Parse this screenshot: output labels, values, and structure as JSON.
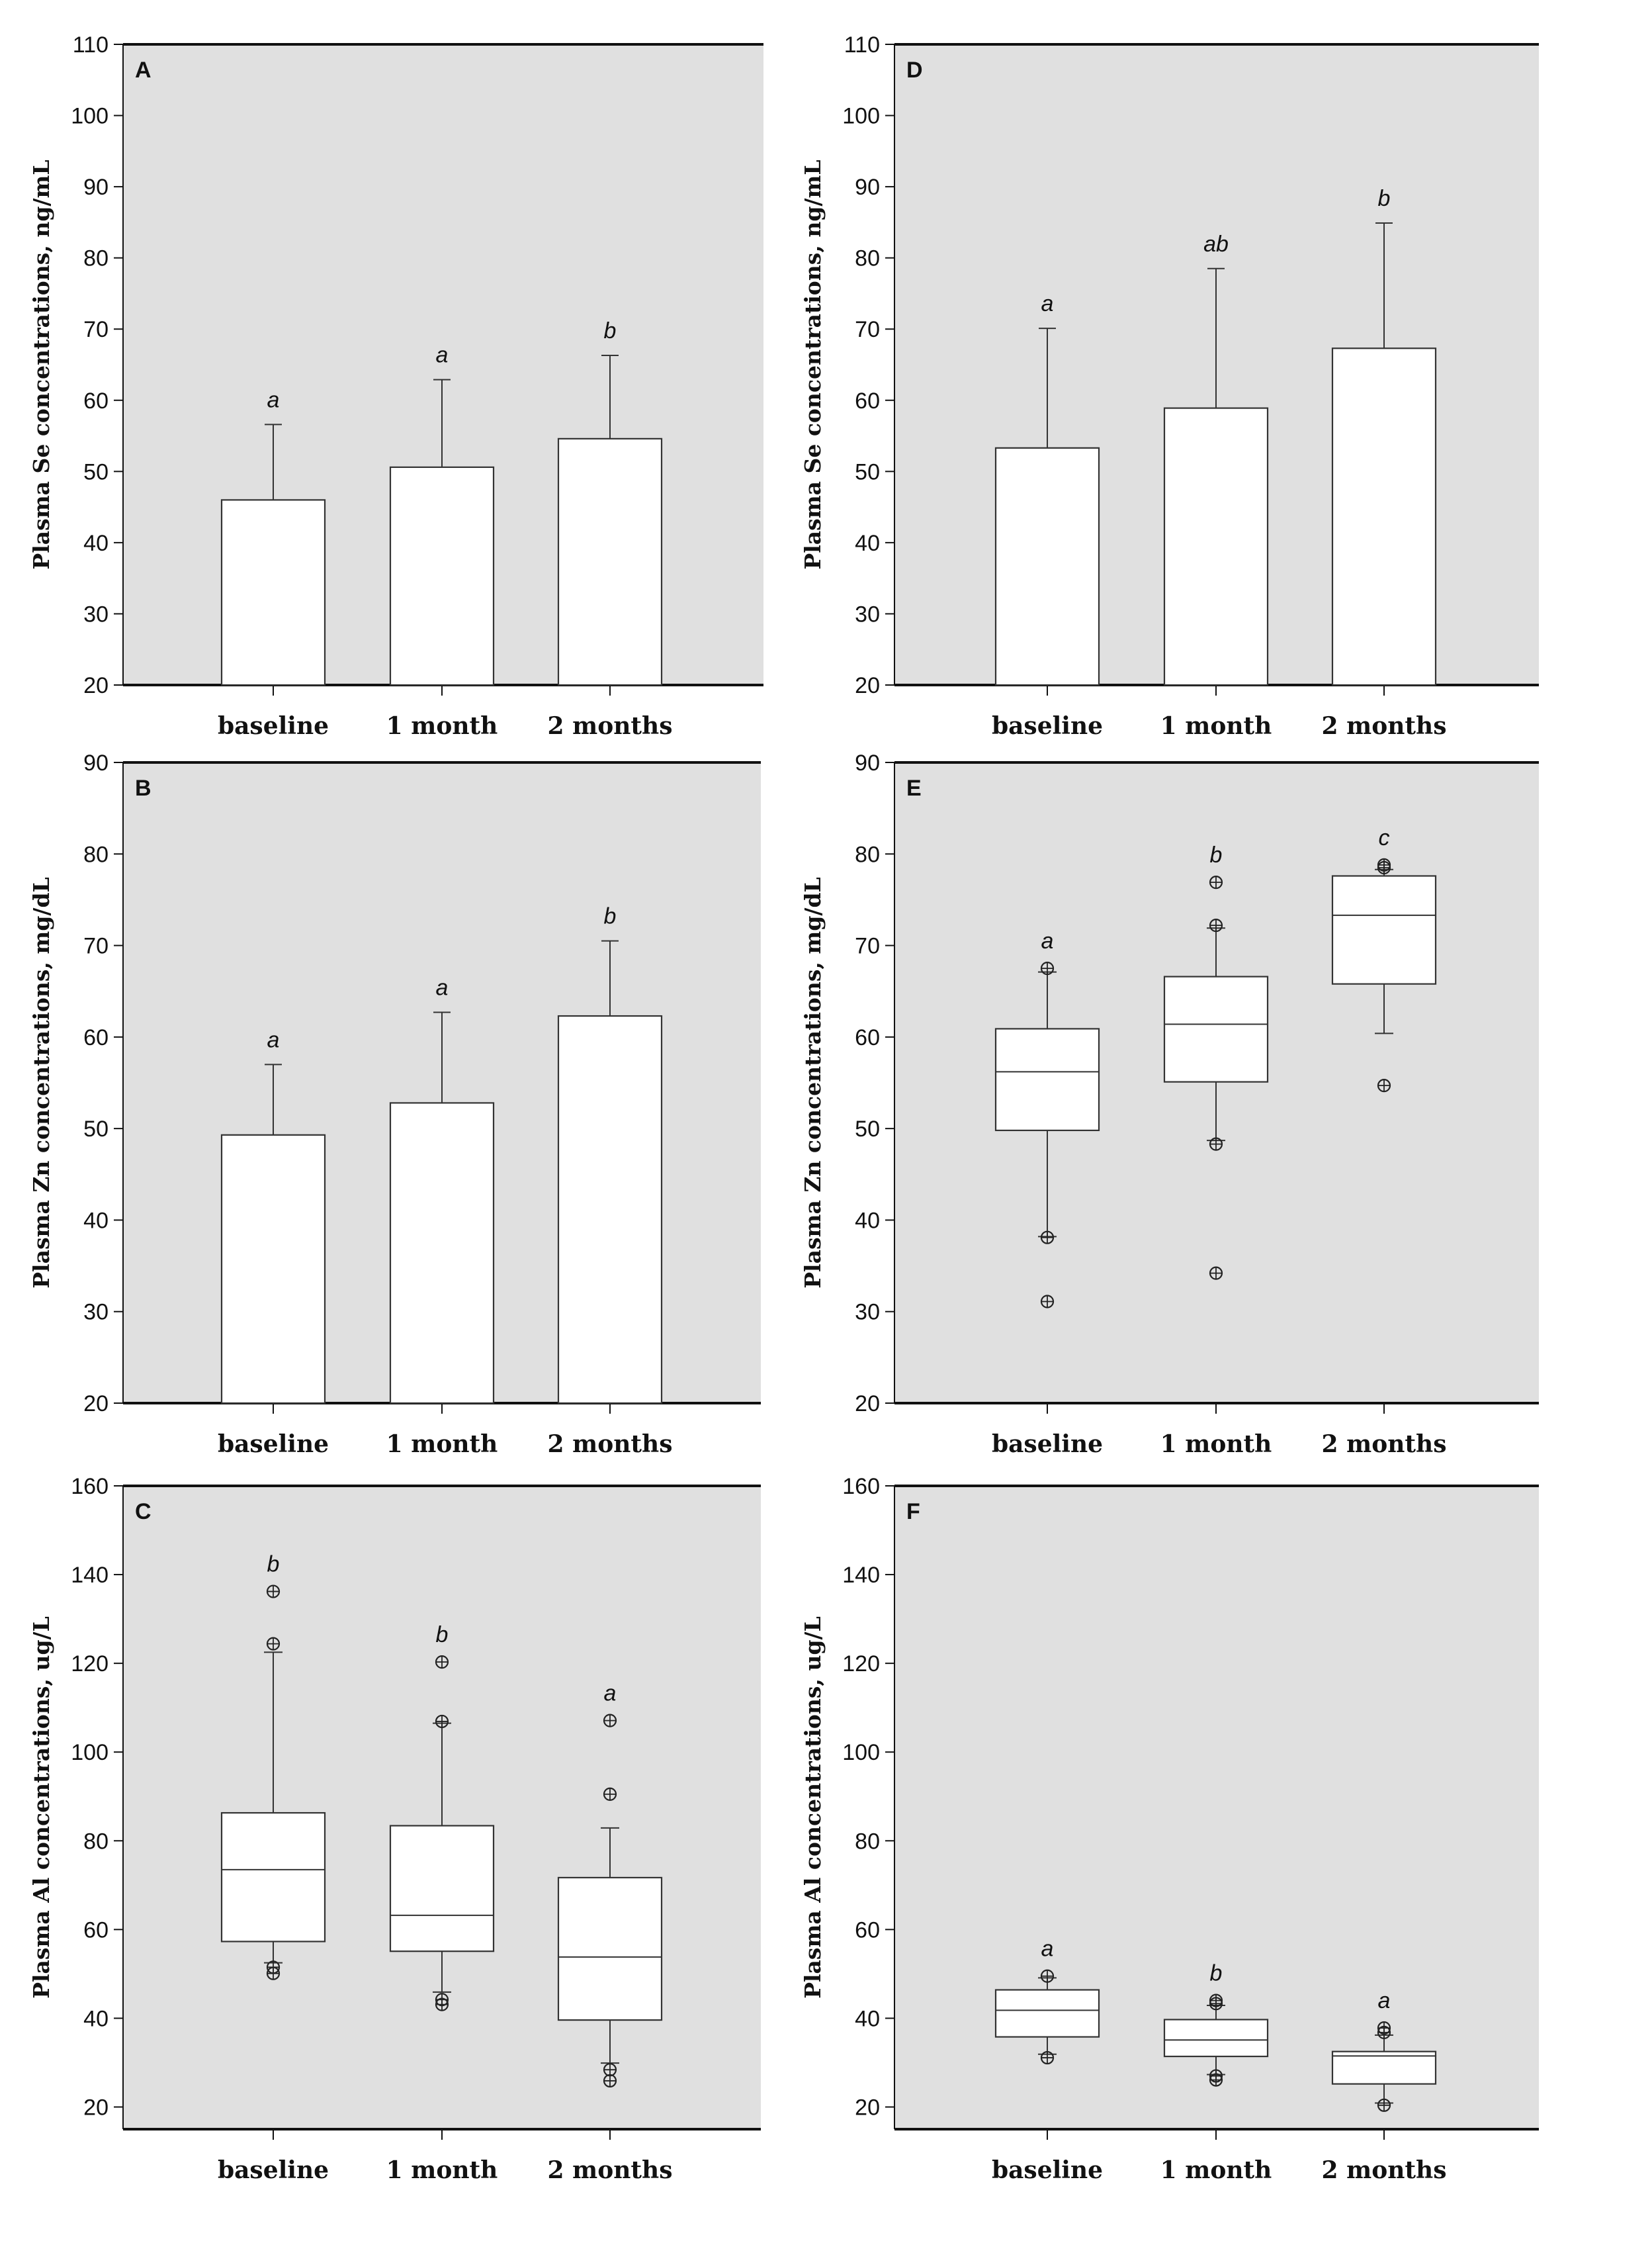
{
  "chart_data": [
    {
      "panel": "A",
      "type": "bar",
      "ylabel": "Plasma Se concentrations, ng/mL",
      "ylim": [
        20,
        110
      ],
      "yticks": [
        20,
        30,
        40,
        50,
        60,
        70,
        80,
        90,
        100,
        110
      ],
      "categories": [
        "baseline",
        "1 month",
        "2 months"
      ],
      "values": [
        46,
        50.6,
        54.6
      ],
      "error_upper": [
        56.6,
        62.9,
        66.3
      ],
      "significance": [
        "a",
        "a",
        "b"
      ]
    },
    {
      "panel": "B",
      "type": "bar",
      "ylabel": "Plasma Zn concentrations, mg/dL",
      "ylim": [
        20,
        90
      ],
      "yticks": [
        20,
        30,
        40,
        50,
        60,
        70,
        80,
        90
      ],
      "categories": [
        "baseline",
        "1 month",
        "2 months"
      ],
      "values": [
        49.3,
        52.8,
        62.3
      ],
      "error_upper": [
        57,
        62.7,
        70.5
      ],
      "significance": [
        "a",
        "a",
        "b"
      ]
    },
    {
      "panel": "C",
      "type": "box",
      "ylabel": "Plasma Al concentrations, ug/L",
      "ylim": [
        15,
        160
      ],
      "yticks": [
        20,
        40,
        60,
        80,
        100,
        120,
        140,
        160
      ],
      "categories": [
        "baseline",
        "1 month",
        "2 months"
      ],
      "boxes": [
        {
          "whisker_low": 52.5,
          "q1": 57.3,
          "median": 73.5,
          "q3": 86.3,
          "whisker_high": 122.5,
          "outliers": [
            50.1,
            51.5,
            124.4,
            136.2
          ]
        },
        {
          "whisker_low": 45.9,
          "q1": 55.1,
          "median": 63.2,
          "q3": 83.4,
          "whisker_high": 106.5,
          "outliers": [
            43.1,
            44.2,
            106.9,
            120.3
          ]
        },
        {
          "whisker_low": 29.9,
          "q1": 39.6,
          "median": 53.8,
          "q3": 71.7,
          "whisker_high": 82.9,
          "outliers": [
            25.9,
            28.4,
            90.5,
            107.1
          ]
        }
      ],
      "significance": [
        "b",
        "b",
        "a"
      ]
    },
    {
      "panel": "D",
      "type": "bar",
      "ylabel": "Plasma Se concentrations, ng/mL",
      "ylim": [
        20,
        110
      ],
      "yticks": [
        20,
        30,
        40,
        50,
        60,
        70,
        80,
        90,
        100,
        110
      ],
      "categories": [
        "baseline",
        "1 month",
        "2 months"
      ],
      "values": [
        53.3,
        58.9,
        67.3
      ],
      "error_upper": [
        70.1,
        78.5,
        84.9
      ],
      "significance": [
        "a",
        "ab",
        "b"
      ]
    },
    {
      "panel": "E",
      "type": "box",
      "ylabel": "Plasma Zn concentrations, mg/dL",
      "ylim": [
        20,
        90
      ],
      "yticks": [
        20,
        30,
        40,
        50,
        60,
        70,
        80,
        90
      ],
      "categories": [
        "baseline",
        "1 month",
        "2 months"
      ],
      "boxes": [
        {
          "whisker_low": 38.2,
          "q1": 49.8,
          "median": 56.2,
          "q3": 60.9,
          "whisker_high": 67.1,
          "outliers": [
            31.1,
            38.1,
            67.5
          ]
        },
        {
          "whisker_low": 48.7,
          "q1": 55.1,
          "median": 61.4,
          "q3": 66.6,
          "whisker_high": 71.9,
          "outliers": [
            34.2,
            48.3,
            72.2,
            76.9
          ]
        },
        {
          "whisker_low": 60.4,
          "q1": 65.8,
          "median": 73.3,
          "q3": 77.6,
          "whisker_high": 78.3,
          "outliers": [
            54.7,
            78.5,
            78.8
          ]
        }
      ],
      "significance": [
        "a",
        "b",
        "c"
      ]
    },
    {
      "panel": "F",
      "type": "box",
      "ylabel": "Plasma Al concentrations, ug/L",
      "ylim": [
        15,
        160
      ],
      "yticks": [
        20,
        40,
        60,
        80,
        100,
        120,
        140,
        160
      ],
      "categories": [
        "baseline",
        "1 month",
        "2 months"
      ],
      "boxes": [
        {
          "whisker_low": 31.9,
          "q1": 35.8,
          "median": 41.8,
          "q3": 46.4,
          "whisker_high": 49.1,
          "outliers": [
            31.1,
            49.5
          ]
        },
        {
          "whisker_low": 27.3,
          "q1": 31.4,
          "median": 35.1,
          "q3": 39.7,
          "whisker_high": 42.9,
          "outliers": [
            26.1,
            27.0,
            43.3,
            44.0
          ]
        },
        {
          "whisker_low": 20.9,
          "q1": 25.2,
          "median": 31.5,
          "q3": 32.5,
          "whisker_high": 36.2,
          "outliers": [
            20.4,
            36.8,
            37.8
          ]
        }
      ],
      "significance": [
        "a",
        "b",
        "a"
      ]
    }
  ]
}
